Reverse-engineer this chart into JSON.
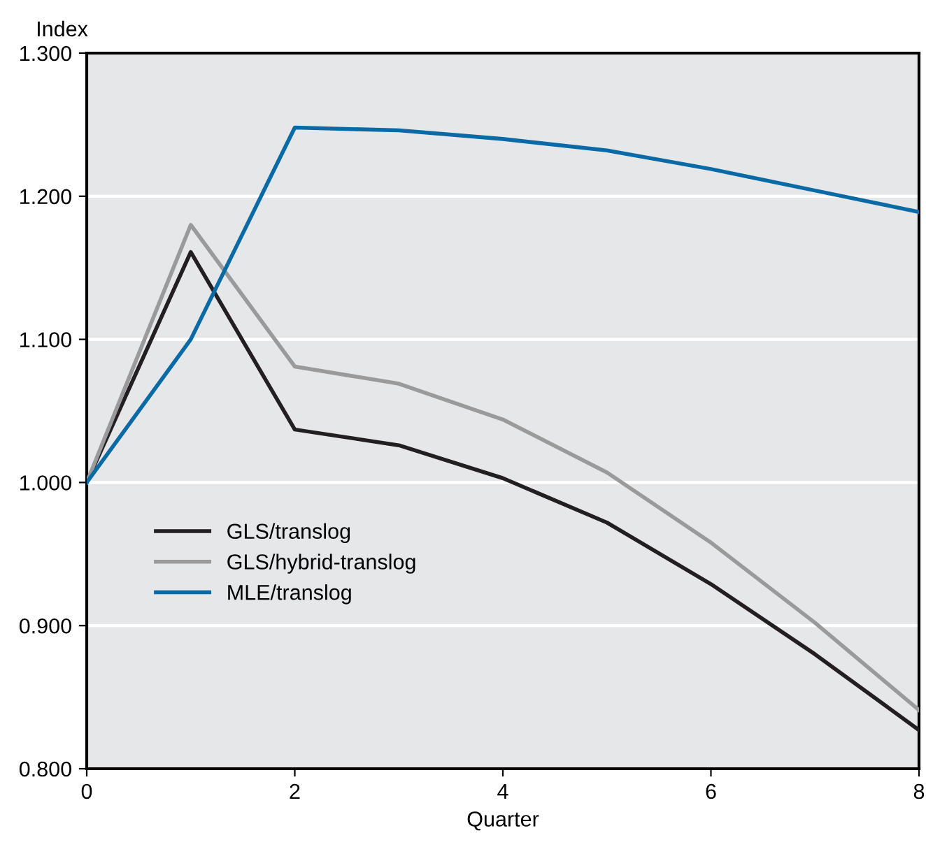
{
  "chart_data": {
    "type": "line",
    "ylabel": "Index",
    "xlabel": "Quarter",
    "x": [
      0,
      1,
      2,
      3,
      4,
      5,
      6,
      7,
      8
    ],
    "series": [
      {
        "name": "GLS/translog",
        "color": "#231f20",
        "values": [
          1.0,
          1.161,
          1.037,
          1.026,
          1.003,
          0.972,
          0.929,
          0.88,
          0.827
        ]
      },
      {
        "name": "GLS/hybrid-translog",
        "color": "#9a9a9a",
        "values": [
          1.0,
          1.18,
          1.081,
          1.069,
          1.044,
          1.007,
          0.958,
          0.902,
          0.841
        ]
      },
      {
        "name": "MLE/translog",
        "color": "#0a6aa6",
        "values": [
          1.0,
          1.1,
          1.248,
          1.246,
          1.24,
          1.232,
          1.219,
          1.204,
          1.189
        ]
      }
    ],
    "xlim": [
      0,
      8
    ],
    "xticks": [
      0,
      2,
      4,
      6,
      8
    ],
    "ylim": [
      0.8,
      1.3
    ],
    "yticks": [
      {
        "value": 0.8,
        "label": "0.800"
      },
      {
        "value": 0.9,
        "label": "0.900"
      },
      {
        "value": 1.0,
        "label": "1.000"
      },
      {
        "value": 1.1,
        "label": "1.100"
      },
      {
        "value": 1.2,
        "label": "1.200"
      },
      {
        "value": 1.3,
        "label": "1.300"
      }
    ],
    "grid": "y",
    "legend": "left",
    "marker": "none",
    "line_style": "solid"
  }
}
